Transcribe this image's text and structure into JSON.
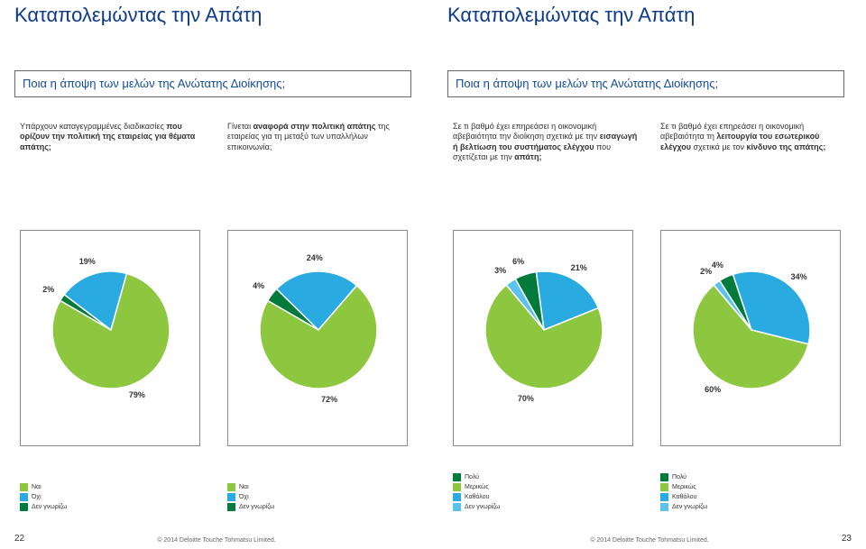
{
  "title_left": "Καταπολεμώντας την Απάτη",
  "title_right": "Καταπολεμώντας την Απάτη",
  "question_left": "Ποια η άποψη των μελών της Ανώτατης Διοίκησης;",
  "question_right": "Ποια η άποψη των μελών της Ανώτατης Διοίκησης;",
  "desc_l1_a": "Υπάρχουν καταγεγραμμένες διαδικασίες",
  "desc_l1_b": " που ορίζουν την πολιτική της εταιρείας για θέματα ",
  "desc_l1_c": "απάτης;",
  "desc_l2_a": "Γίνεται ",
  "desc_l2_b": "αναφορά στην πολιτική απάτης",
  "desc_l2_c": " της εταιρείας για τη μεταξύ των υπαλλήλων επικοινωνία;",
  "desc_r1_a": "Σε τι βαθμό έχει επηρεάσει η οικονομική αβεβαιότητα την διοίκηση σχετικά με την ",
  "desc_r1_b": "εισαγωγή ή βελτίωση του συστήματος ελέγχου",
  "desc_r1_c": " που σχετίζεται με την ",
  "desc_r1_d": "απάτη;",
  "desc_r2_a": "Σε τι βαθμό έχει επηρεάσει η οικονομική αβεβαιότητα τη ",
  "desc_r2_b": "λειτουργία του εσωτερικού ελέγχου",
  "desc_r2_c": " σχετικά με τον ",
  "desc_r2_d": "κίνδυνο της απάτης;",
  "colors": {
    "green": "#8dc63f",
    "blue": "#29abe2",
    "lightblue": "#5bc2ec",
    "darkgreen": "#007b3c",
    "grey": "#888888"
  },
  "chart1": {
    "type": "pie",
    "slices": [
      {
        "label": "79%",
        "value": 79,
        "color": "#8dc63f"
      },
      {
        "label": "19%",
        "value": 19,
        "color": "#29abe2"
      },
      {
        "label": "2%",
        "value": 2,
        "color": "#007b3c"
      }
    ],
    "legend": [
      "Ναι",
      "Όχι",
      "Δεν γνωρίζω"
    ],
    "legend_colors": [
      "#8dc63f",
      "#29abe2",
      "#007b3c"
    ]
  },
  "chart2": {
    "type": "pie",
    "slices": [
      {
        "label": "72%",
        "value": 72,
        "color": "#8dc63f"
      },
      {
        "label": "24%",
        "value": 24,
        "color": "#29abe2"
      },
      {
        "label": "4%",
        "value": 4,
        "color": "#007b3c"
      }
    ],
    "legend": [
      "Ναι",
      "Όχι",
      "Δεν γνωρίζω"
    ],
    "legend_colors": [
      "#8dc63f",
      "#29abe2",
      "#007b3c"
    ]
  },
  "chart3": {
    "type": "pie",
    "slices": [
      {
        "label": "70%",
        "value": 70,
        "color": "#8dc63f"
      },
      {
        "label": "21%",
        "value": 21,
        "color": "#29abe2"
      },
      {
        "label": "6%",
        "value": 6,
        "color": "#007b3c"
      },
      {
        "label": "3%",
        "value": 3,
        "color": "#5bc2ec"
      }
    ],
    "legend": [
      "Πολύ",
      "Μερικώς",
      "Καθόλου",
      "Δεν γνωρίζω"
    ],
    "legend_colors": [
      "#007b3c",
      "#8dc63f",
      "#29abe2",
      "#5bc2ec"
    ]
  },
  "chart4": {
    "type": "pie",
    "slices": [
      {
        "label": "60%",
        "value": 60,
        "color": "#8dc63f"
      },
      {
        "label": "34%",
        "value": 34,
        "color": "#29abe2"
      },
      {
        "label": "4%",
        "value": 4,
        "color": "#007b3c"
      },
      {
        "label": "2%",
        "value": 2,
        "color": "#5bc2ec"
      }
    ],
    "legend": [
      "Πολύ",
      "Μερικώς",
      "Καθόλου",
      "Δεν γνωρίζω"
    ],
    "legend_colors": [
      "#007b3c",
      "#8dc63f",
      "#29abe2",
      "#5bc2ec"
    ]
  },
  "footer_text": "© 2014 Deloitte Touche Tohmatsu Limited.",
  "page_left": "22",
  "page_right": "23"
}
